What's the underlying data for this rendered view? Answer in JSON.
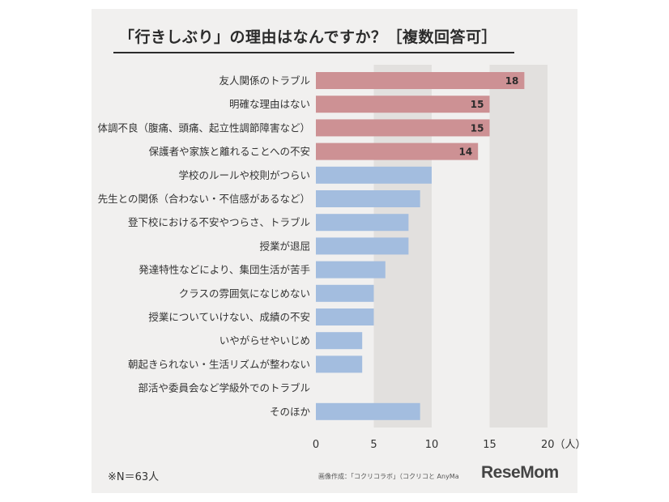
{
  "title": "「行きしぶり」の理由はなんですか？［複数回答可］",
  "note": "※N＝63人",
  "credit": "画像作成：「コクリコラボ」（コクリコと AnyMa",
  "brand": "ReseMom",
  "colors": {
    "highlight": "#cd9194",
    "normal": "#a3bddf",
    "band": "#e2e0de",
    "text": "#333333"
  },
  "chart_data": {
    "type": "bar",
    "orientation": "horizontal",
    "title": "「行きしぶり」の理由はなんですか？［複数回答可］",
    "xlabel": "",
    "ylabel": "",
    "xlim": [
      0,
      20
    ],
    "ticks": [
      "0",
      "5",
      "10",
      "15",
      "20（人）"
    ],
    "tick_values": [
      0,
      5,
      10,
      15,
      20
    ],
    "categories": [
      "友人関係のトラブル",
      "明確な理由はない",
      "体調不良（腹痛、頭痛、起立性調節障害など）",
      "保護者や家族と離れることへの不安",
      "学校のルールや校則がつらい",
      "先生との関係（合わない・不信感があるなど）",
      "登下校における不安やつらさ、トラブル",
      "授業が退屈",
      "発達特性などにより、集団生活が苦手",
      "クラスの雰囲気になじめない",
      "授業についていけない、成績の不安",
      "いやがらせやいじめ",
      "朝起きられない・生活リズムが整わない",
      "部活や委員会など学級外でのトラブル",
      "そのほか"
    ],
    "values": [
      18,
      15,
      15,
      14,
      10,
      9,
      8,
      8,
      6,
      5,
      5,
      4,
      4,
      0,
      9
    ],
    "data_labels": [
      "18",
      "15",
      "15",
      "14",
      "",
      "",
      "",
      "",
      "",
      "",
      "",
      "",
      "",
      "",
      ""
    ],
    "highlighted_count": 4,
    "grid": false
  }
}
